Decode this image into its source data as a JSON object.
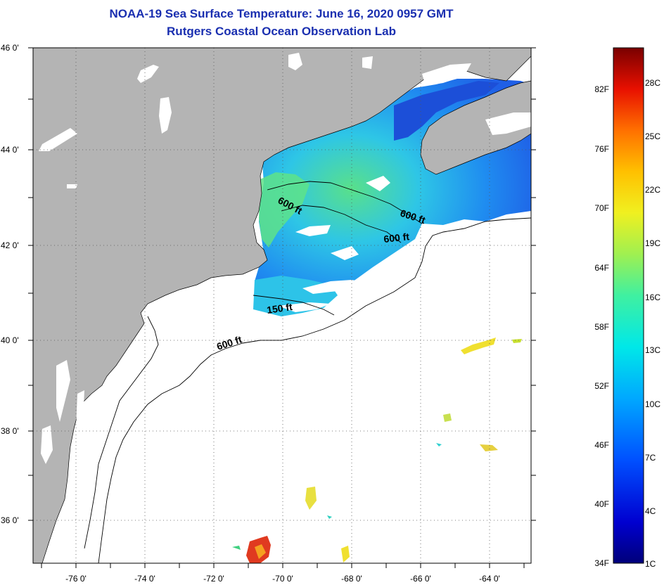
{
  "title": {
    "line1": "NOAA-19 Sea Surface Temperature:  June 16, 2020 0957 GMT",
    "line2": "Rutgers Coastal Ocean Observation Lab"
  },
  "map": {
    "lat_labels": [
      "46 0'",
      "44 0'",
      "42 0'",
      "40 0'",
      "38 0'",
      "36 0'"
    ],
    "lon_labels": [
      "-76 0'",
      "-74 0'",
      "-72 0'",
      "-70 0'",
      "-68 0'",
      "-66 0'",
      "-64 0'"
    ],
    "isobaths": [
      "600 ft",
      "600 ft",
      "600 ft",
      "150 ft",
      "600 ft"
    ]
  },
  "colorbar": {
    "f_labels": [
      "82F",
      "76F",
      "70F",
      "64F",
      "58F",
      "52F",
      "46F",
      "40F",
      "34F"
    ],
    "c_labels": [
      "28C",
      "25C",
      "22C",
      "19C",
      "16C",
      "13C",
      "10C",
      "7C",
      "4C",
      "1C"
    ]
  },
  "colors": {
    "title": "#1a2fb0",
    "land": "#b4b4b4",
    "ocean": "#ffffff"
  }
}
